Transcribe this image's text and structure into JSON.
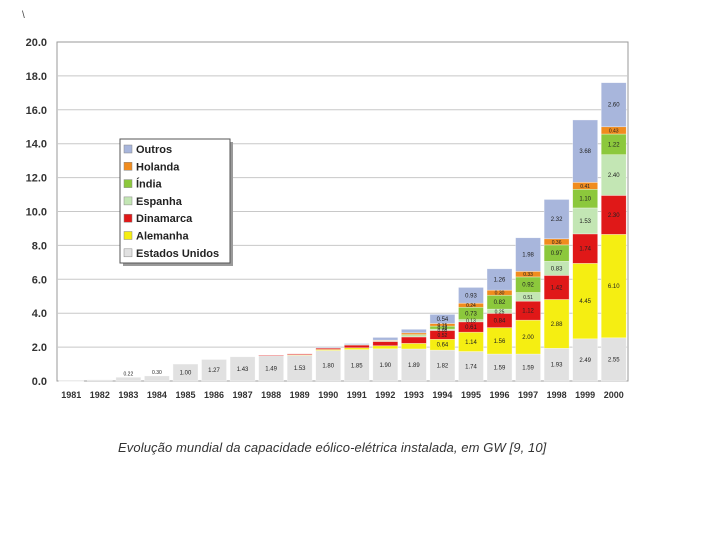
{
  "corner_mark": "\\",
  "caption": "Evolução mundial da capacidade eólico-elétrica instalada, em GW [9, 10]",
  "colors": {
    "Estados Unidos": "#e1e1e1",
    "Alemanha": "#f5ee12",
    "Dinamarca": "#e01818",
    "Espanha": "#c3e6b4",
    "Índia": "#8cc83c",
    "Holanda": "#f08c1e",
    "Outros": "#a8b6dc"
  },
  "chart_data": {
    "type": "bar",
    "stacked": true,
    "title": "",
    "xlabel": "",
    "ylabel": "",
    "ylim": [
      0,
      20
    ],
    "yticks": [
      "0.0",
      "2.0",
      "4.0",
      "6.0",
      "8.0",
      "10.0",
      "12.0",
      "14.0",
      "16.0",
      "18.0",
      "20.0"
    ],
    "grid": true,
    "legend_position": "upper-left",
    "categories": [
      "1981",
      "1982",
      "1983",
      "1984",
      "1985",
      "1986",
      "1987",
      "1988",
      "1989",
      "1990",
      "1991",
      "1992",
      "1993",
      "1994",
      "1995",
      "1996",
      "1997",
      "1998",
      "1999",
      "2000"
    ],
    "legend_order": [
      "Outros",
      "Holanda",
      "Índia",
      "Espanha",
      "Dinamarca",
      "Alemanha",
      "Estados Unidos"
    ],
    "series": [
      {
        "name": "Estados Unidos",
        "values": [
          0.01,
          0.07,
          0.22,
          0.3,
          1.0,
          1.27,
          1.43,
          1.49,
          1.53,
          1.8,
          1.85,
          1.9,
          1.89,
          1.82,
          1.74,
          1.59,
          1.59,
          1.93,
          2.49,
          2.55
        ],
        "labels": [
          "",
          "",
          "0.22",
          "0.30",
          "1.00",
          "1.27",
          "1.43",
          "1.49",
          "1.53",
          "1.80",
          "1.85",
          "1.90",
          "1.89",
          "1.82",
          "1.74",
          "1.59",
          "1.59",
          "1.93",
          "2.49",
          "2.55"
        ]
      },
      {
        "name": "Alemanha",
        "values": [
          0,
          0,
          0,
          0,
          0,
          0,
          0,
          0,
          0.02,
          0.06,
          0.11,
          0.18,
          0.33,
          0.64,
          1.14,
          1.56,
          2.0,
          2.88,
          4.45,
          6.1
        ],
        "labels": [
          "",
          "",
          "",
          "",
          "",
          "",
          "",
          "",
          "",
          "",
          "",
          "",
          "",
          "0.64",
          "1.14",
          "1.56",
          "2.00",
          "2.88",
          "4.45",
          "6.10"
        ]
      },
      {
        "name": "Dinamarca",
        "values": [
          0,
          0,
          0,
          0,
          0,
          0,
          0,
          0.04,
          0.05,
          0.08,
          0.17,
          0.25,
          0.38,
          0.52,
          0.61,
          0.84,
          1.12,
          1.42,
          1.74,
          2.3
        ],
        "labels": [
          "",
          "",
          "",
          "",
          "",
          "",
          "",
          "",
          "",
          "",
          "",
          "",
          "",
          "0.52",
          "0.61",
          "0.84",
          "1.12",
          "1.42",
          "1.74",
          "2.30"
        ]
      },
      {
        "name": "Espanha",
        "values": [
          0,
          0,
          0,
          0,
          0,
          0,
          0,
          0,
          0,
          0,
          0.02,
          0.04,
          0.08,
          0.08,
          0.13,
          0.25,
          0.51,
          0.83,
          1.53,
          2.4
        ],
        "labels": [
          "",
          "",
          "",
          "",
          "",
          "",
          "",
          "",
          "",
          "",
          "",
          "",
          "",
          "0.08",
          "0.13",
          "0.25",
          "0.51",
          "0.83",
          "1.53",
          "2.40"
        ]
      },
      {
        "name": "Índia",
        "values": [
          0,
          0,
          0,
          0,
          0,
          0,
          0,
          0,
          0,
          0,
          0,
          0.02,
          0.06,
          0.18,
          0.73,
          0.82,
          0.92,
          0.97,
          1.1,
          1.22
        ],
        "labels": [
          "",
          "",
          "",
          "",
          "",
          "",
          "",
          "",
          "",
          "",
          "",
          "",
          "",
          "0.18",
          "0.73",
          "0.82",
          "0.92",
          "0.97",
          "1.10",
          "1.22"
        ]
      },
      {
        "name": "Holanda",
        "values": [
          0,
          0,
          0,
          0,
          0,
          0,
          0,
          0,
          0,
          0,
          0,
          0.02,
          0.1,
          0.15,
          0.24,
          0.3,
          0.33,
          0.36,
          0.41,
          0.43
        ],
        "labels": [
          "",
          "",
          "",
          "",
          "",
          "",
          "",
          "",
          "",
          "",
          "",
          "",
          "",
          "0.15",
          "0.24",
          "0.30",
          "0.33",
          "0.36",
          "0.41",
          "0.43"
        ]
      },
      {
        "name": "Outros",
        "values": [
          0,
          0,
          0,
          0,
          0,
          0,
          0,
          0,
          0,
          0.04,
          0.06,
          0.16,
          0.21,
          0.54,
          0.93,
          1.26,
          1.98,
          2.32,
          3.68,
          2.6
        ],
        "labels": [
          "",
          "",
          "",
          "",
          "",
          "",
          "",
          "",
          "",
          "",
          "",
          "",
          "",
          "0.54",
          "0.93",
          "1.26",
          "1.98",
          "2.32",
          "3.68",
          "2.60"
        ]
      }
    ]
  }
}
